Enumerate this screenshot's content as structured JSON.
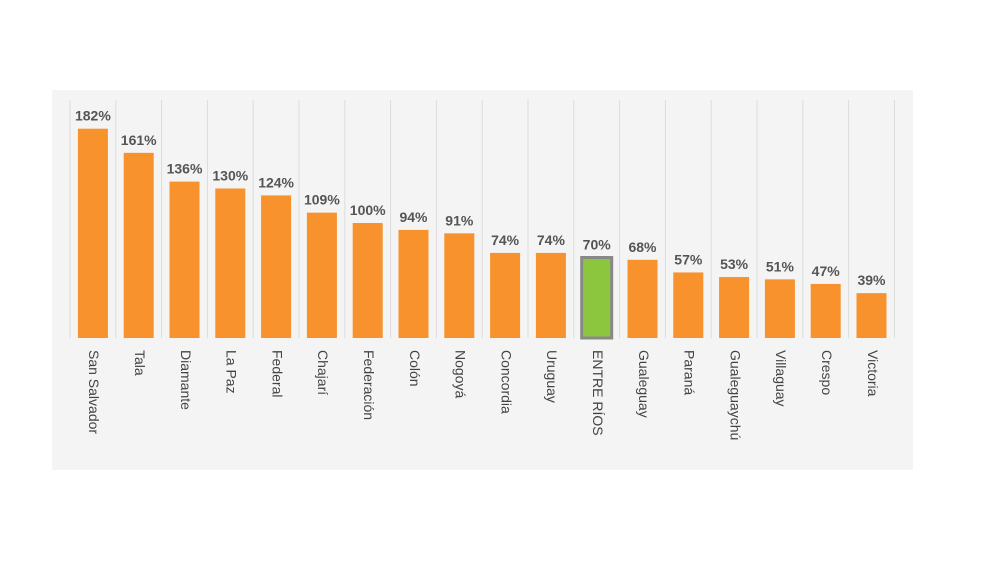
{
  "chart_data": {
    "type": "bar",
    "categories": [
      "San Salvador",
      "Tala",
      "Diamante",
      "La Paz",
      "Federal",
      "Chajarí",
      "Federación",
      "Colón",
      "Nogoyá",
      "Concordia",
      "Uruguay",
      "ENTRE RÍOS",
      "Gualeguay",
      "Paraná",
      "Gualeguaychú",
      "Villaguay",
      "Crespo",
      "Victoria"
    ],
    "values": [
      182,
      161,
      136,
      130,
      124,
      109,
      100,
      94,
      91,
      74,
      74,
      70,
      68,
      57,
      53,
      51,
      47,
      39
    ],
    "value_labels": [
      "182%",
      "161%",
      "136%",
      "130%",
      "124%",
      "109%",
      "100%",
      "94%",
      "91%",
      "74%",
      "74%",
      "70%",
      "68%",
      "57%",
      "53%",
      "51%",
      "47%",
      "39%"
    ],
    "colors": [
      "#f7922d",
      "#f7922d",
      "#f7922d",
      "#f7922d",
      "#f7922d",
      "#f7922d",
      "#f7922d",
      "#f7922d",
      "#f7922d",
      "#f7922d",
      "#f7922d",
      "#8cc63f",
      "#f7922d",
      "#f7922d",
      "#f7922d",
      "#f7922d",
      "#f7922d",
      "#f7922d"
    ]
  }
}
